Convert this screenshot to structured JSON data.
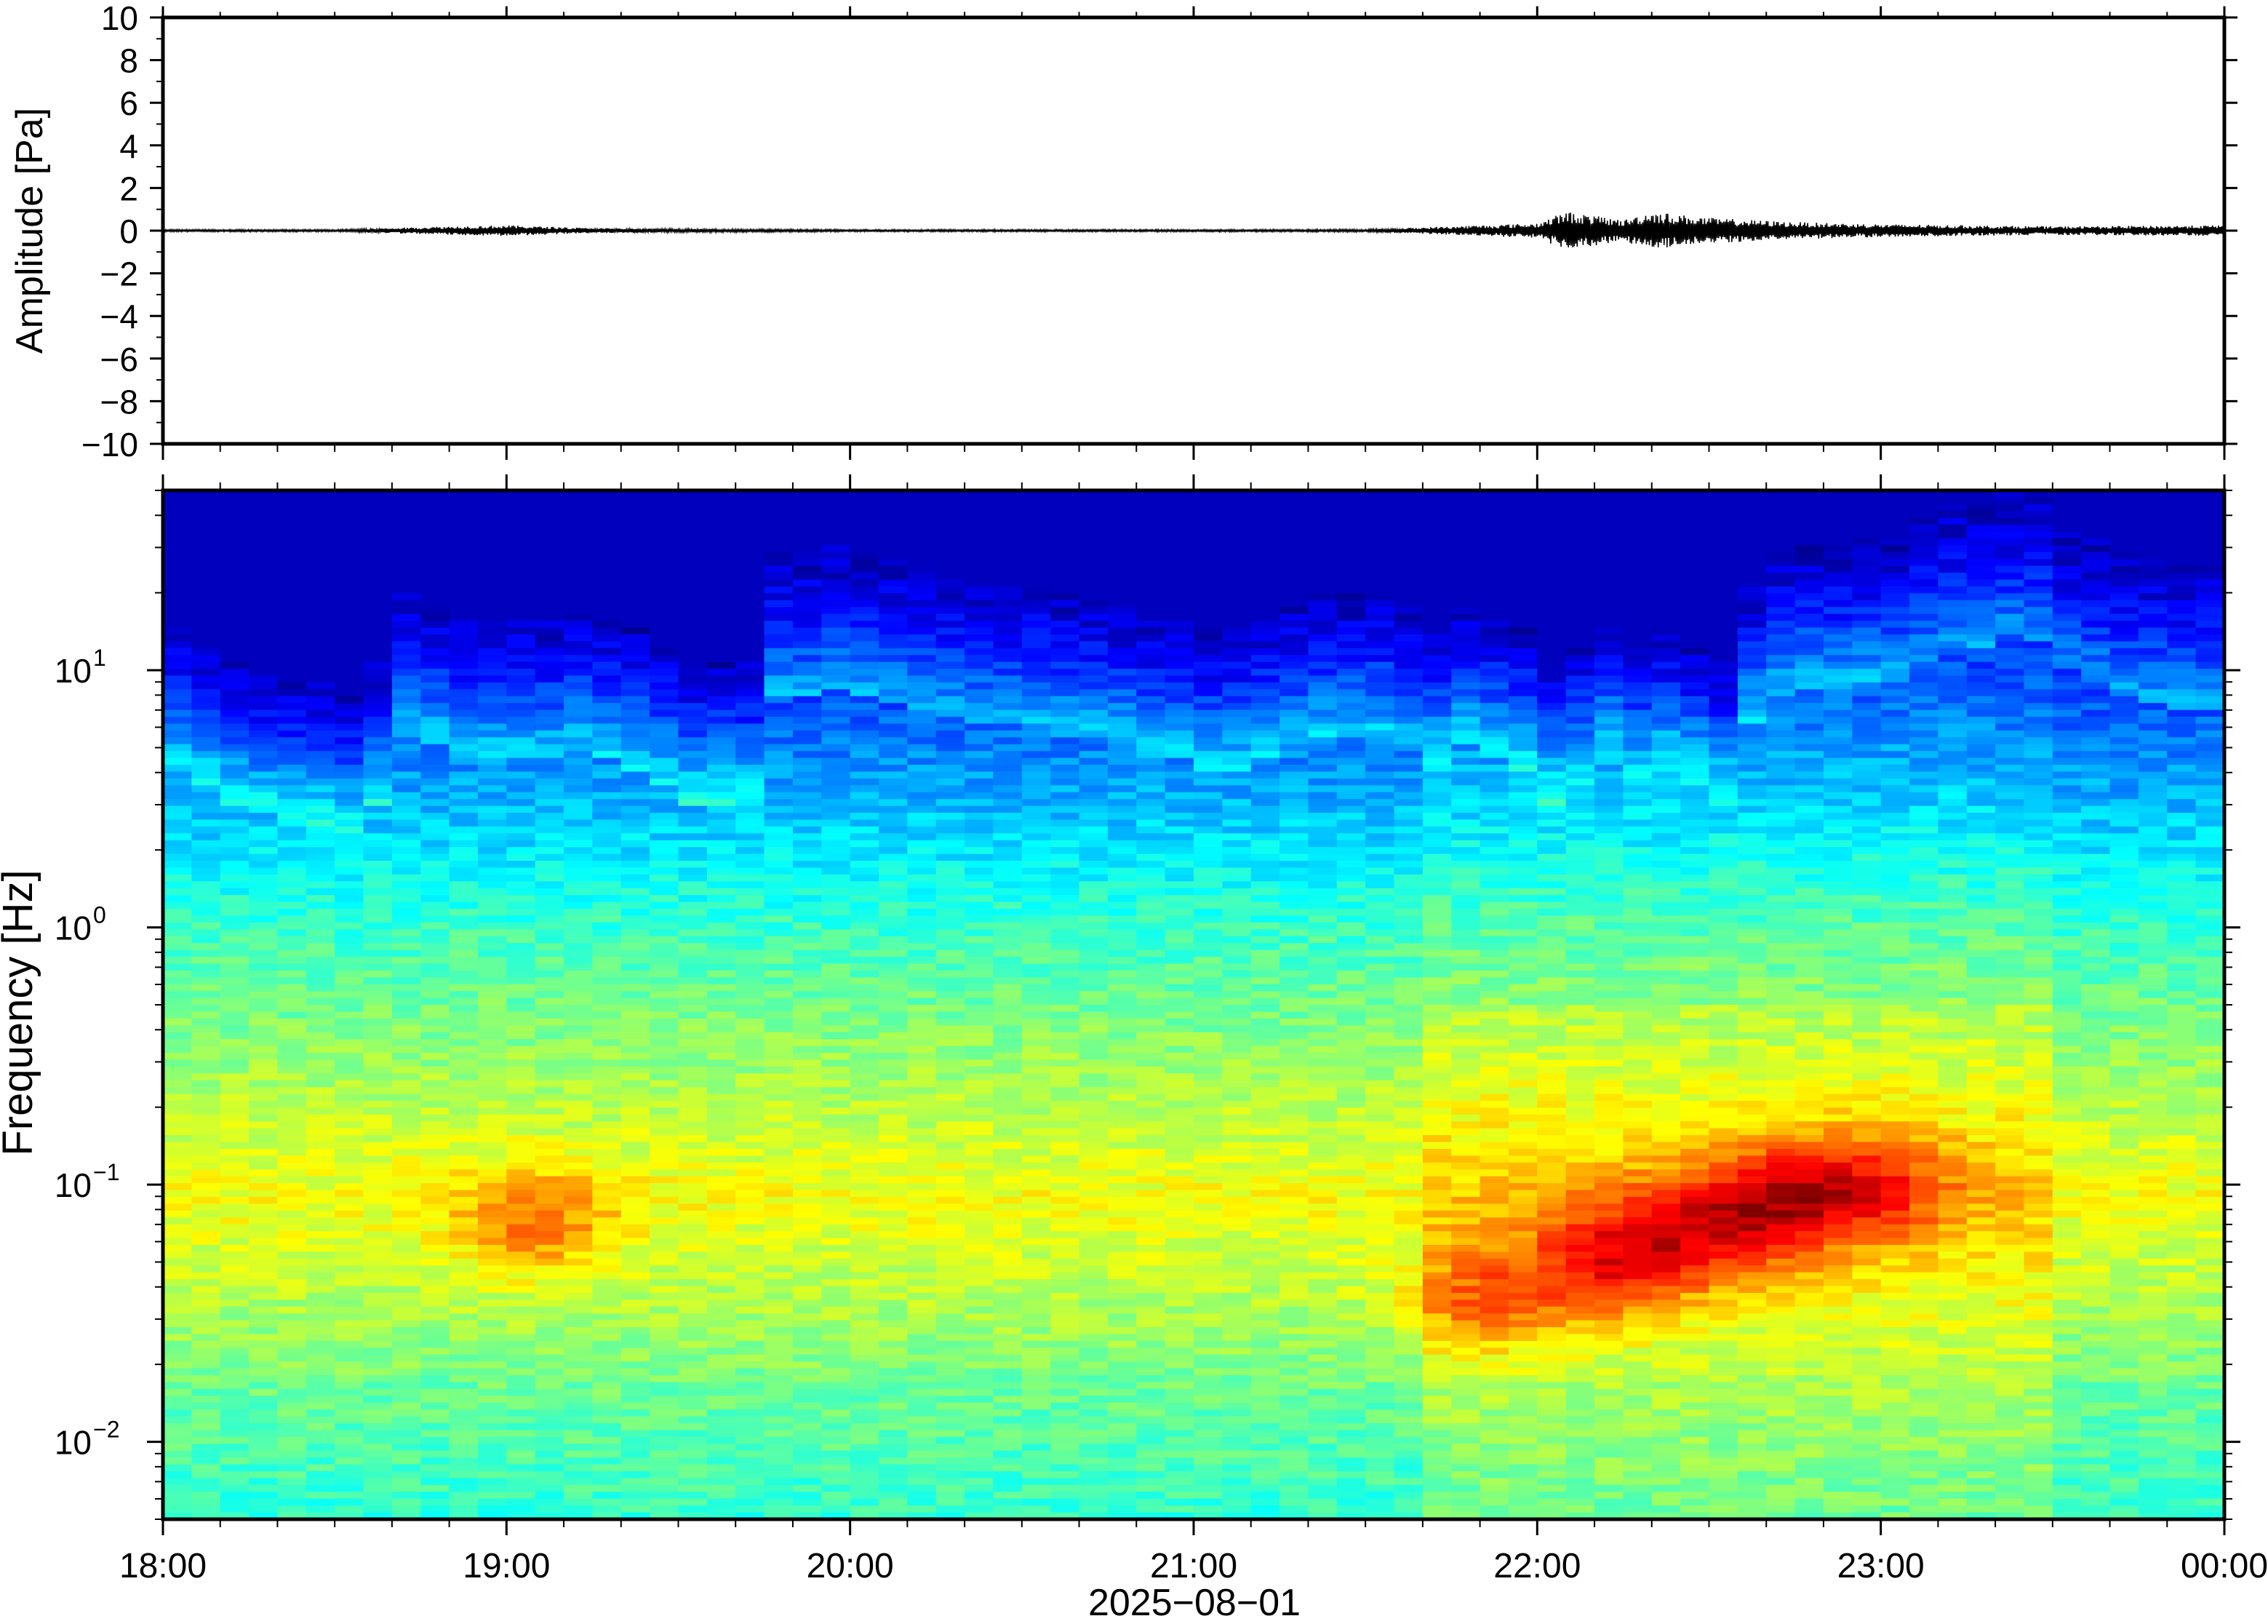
{
  "chart_data": [
    {
      "type": "line",
      "ylabel": "Amplitude [Pa]",
      "ylim": [
        -10,
        10
      ],
      "yticks": [
        -10,
        -8,
        -6,
        -4,
        -2,
        0,
        2,
        4,
        6,
        8,
        10
      ],
      "ytick_labels": [
        "−10",
        "−8",
        "−6",
        "−4",
        "−2",
        "0",
        "2",
        "4",
        "6",
        "8",
        "10"
      ],
      "x_range": [
        "18:00",
        "00:00"
      ],
      "grid": false,
      "series": [
        {
          "color": "#000000",
          "envelope_note": "waveform centred on 0 Pa",
          "x": [
            "18:00",
            "18:30",
            "18:50",
            "19:00",
            "19:15",
            "19:30",
            "20:00",
            "20:30",
            "21:00",
            "21:30",
            "21:45",
            "22:00",
            "22:05",
            "22:15",
            "22:20",
            "22:30",
            "22:45",
            "23:00",
            "23:30",
            "00:00"
          ],
          "peak_abs_pa": [
            0.05,
            0.05,
            0.2,
            0.25,
            0.12,
            0.08,
            0.05,
            0.05,
            0.05,
            0.06,
            0.2,
            0.35,
            0.9,
            0.5,
            0.9,
            0.6,
            0.4,
            0.3,
            0.2,
            0.25
          ]
        }
      ]
    },
    {
      "type": "heatmap",
      "xlabel": "2025−08−01",
      "ylabel": "Frequency [Hz]",
      "yscale": "log",
      "ylim": [
        0.005,
        50
      ],
      "ytick_labels": [
        {
          "base": "10",
          "exp": "−2",
          "value": 0.01
        },
        {
          "base": "10",
          "exp": "−1",
          "value": 0.1
        },
        {
          "base": "10",
          "exp": "0",
          "value": 1
        },
        {
          "base": "10",
          "exp": "1",
          "value": 10
        }
      ],
      "x_tick_labels": [
        "18:00",
        "19:00",
        "20:00",
        "21:00",
        "22:00",
        "23:00",
        "00:00"
      ],
      "colormap": "jet",
      "colors": {
        "low": "#00007f",
        "mid": "#7dff7a",
        "high": "#ff8000"
      },
      "column_time_step_min": 5,
      "columns": 72,
      "cutoff_hz_note": "upper frequency where energy falls to background, per 5-min column",
      "cutoff_hz": [
        8,
        7,
        6,
        5.5,
        5,
        5,
        4.5,
        6,
        11,
        10,
        9,
        8.5,
        9,
        9,
        9.5,
        9,
        8,
        7,
        6,
        6,
        6,
        16,
        16,
        17,
        16,
        15,
        14,
        13,
        12,
        12,
        12,
        11,
        11,
        10,
        9,
        9,
        8,
        8,
        9,
        10,
        11,
        11,
        11,
        10,
        8,
        10,
        9,
        8,
        6,
        7,
        9,
        7,
        8,
        7,
        6,
        12,
        16,
        17,
        17,
        18,
        18,
        22,
        25,
        25,
        28,
        26,
        20,
        18,
        16,
        15,
        14,
        14
      ],
      "hotspots": [
        {
          "time": "19:05",
          "freq_hz": 0.07,
          "level": "orange"
        },
        {
          "time": "21:50",
          "freq_hz": 0.035,
          "level": "orange"
        },
        {
          "time": "22:10",
          "freq_hz": 0.045,
          "level": "orange"
        },
        {
          "time": "22:20",
          "freq_hz": 0.06,
          "level": "orange"
        },
        {
          "time": "22:35",
          "freq_hz": 0.07,
          "level": "orange"
        },
        {
          "time": "22:45",
          "freq_hz": 0.09,
          "level": "orange"
        },
        {
          "time": "23:00",
          "freq_hz": 0.1,
          "level": "orange"
        }
      ]
    }
  ]
}
